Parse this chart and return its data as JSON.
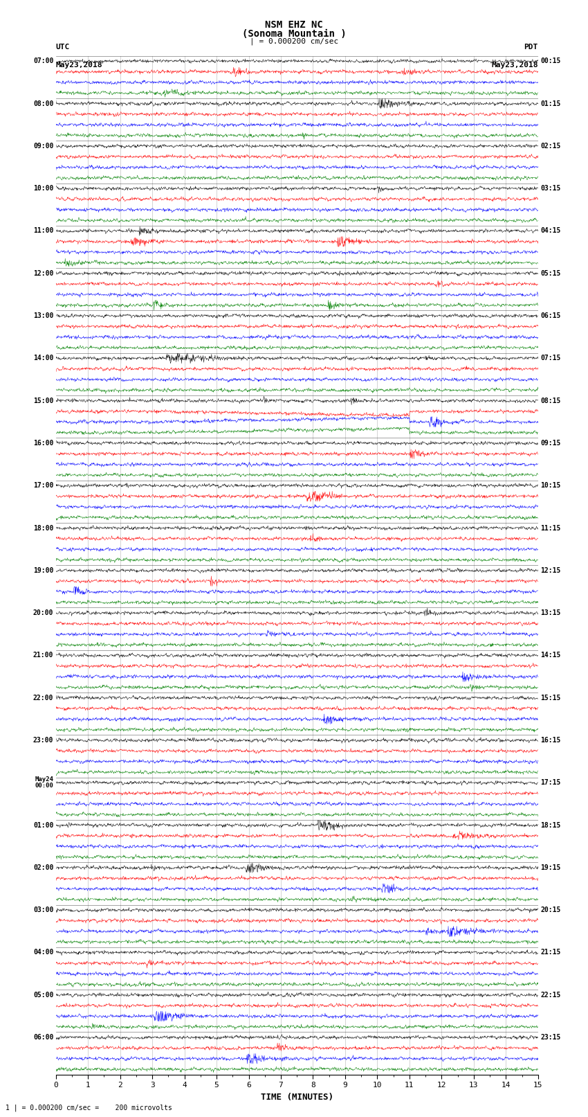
{
  "title_line1": "NSM EHZ NC",
  "title_line2": "(Sonoma Mountain )",
  "title_line3": "| = 0.000200 cm/sec",
  "left_header_line1": "UTC",
  "left_header_line2": "May23,2018",
  "right_header_line1": "PDT",
  "right_header_line2": "May23,2018",
  "bottom_label": "TIME (MINUTES)",
  "bottom_note": "1 | = 0.000200 cm/sec =    200 microvolts",
  "utc_labels": [
    "07:00",
    "08:00",
    "09:00",
    "10:00",
    "11:00",
    "12:00",
    "13:00",
    "14:00",
    "15:00",
    "16:00",
    "17:00",
    "18:00",
    "19:00",
    "20:00",
    "21:00",
    "22:00",
    "23:00",
    "May24\n00:00",
    "01:00",
    "02:00",
    "03:00",
    "04:00",
    "05:00",
    "06:00"
  ],
  "pdt_labels": [
    "00:15",
    "01:15",
    "02:15",
    "03:15",
    "04:15",
    "05:15",
    "06:15",
    "07:15",
    "08:15",
    "09:15",
    "10:15",
    "11:15",
    "12:15",
    "13:15",
    "14:15",
    "15:15",
    "16:15",
    "17:15",
    "18:15",
    "19:15",
    "20:15",
    "21:15",
    "22:15",
    "23:15"
  ],
  "colors": [
    "black",
    "red",
    "blue",
    "green"
  ],
  "num_groups": 24,
  "traces_per_group": 4,
  "x_min": 0,
  "x_max": 15,
  "x_ticks": [
    0,
    1,
    2,
    3,
    4,
    5,
    6,
    7,
    8,
    9,
    10,
    11,
    12,
    13,
    14,
    15
  ],
  "background_color": "white",
  "fig_width": 8.5,
  "fig_height": 16.13,
  "dpi": 100
}
